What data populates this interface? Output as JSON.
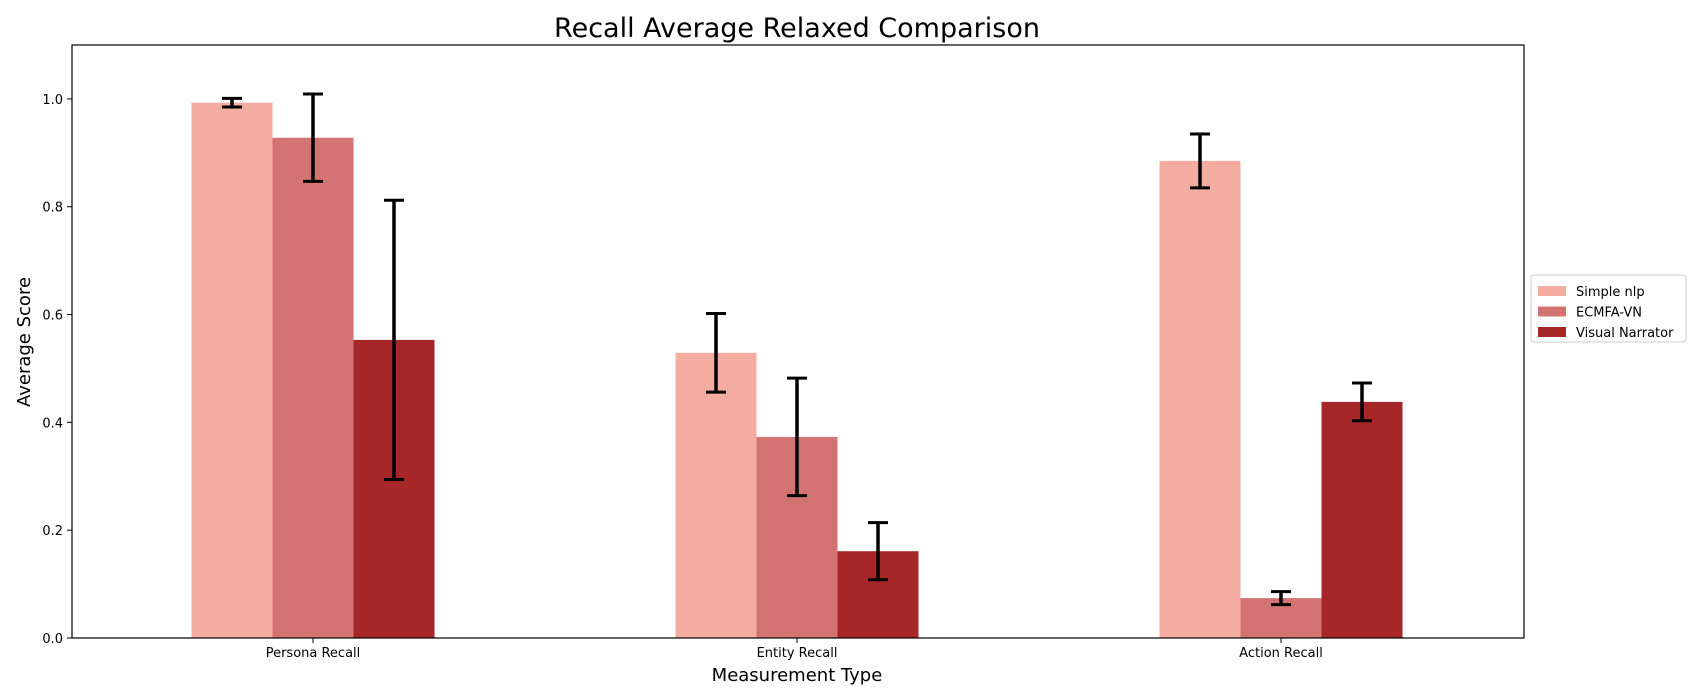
{
  "chart_data": {
    "type": "bar",
    "title": "Recall Average Relaxed Comparison",
    "xlabel": "Measurement Type",
    "ylabel": "Average Score",
    "categories": [
      "Persona Recall",
      "Entity Recall",
      "Action Recall"
    ],
    "ylim": [
      0,
      1.1
    ],
    "yticks": [
      "0.0",
      "0.2",
      "0.4",
      "0.6",
      "0.8",
      "1.0"
    ],
    "legend_position": "center-right-outside",
    "series": [
      {
        "name": "Simple nlp",
        "color": "#f4aca0",
        "values": [
          0.993,
          0.529,
          0.885
        ],
        "errors": [
          0.008,
          0.073,
          0.05
        ]
      },
      {
        "name": "ECMFA-VN",
        "color": "#d47472",
        "values": [
          0.928,
          0.373,
          0.074
        ],
        "errors": [
          0.081,
          0.109,
          0.012
        ]
      },
      {
        "name": "Visual Narrator",
        "color": "#a72628",
        "values": [
          0.553,
          0.161,
          0.438
        ],
        "errors": [
          0.259,
          0.053,
          0.035
        ]
      }
    ]
  }
}
